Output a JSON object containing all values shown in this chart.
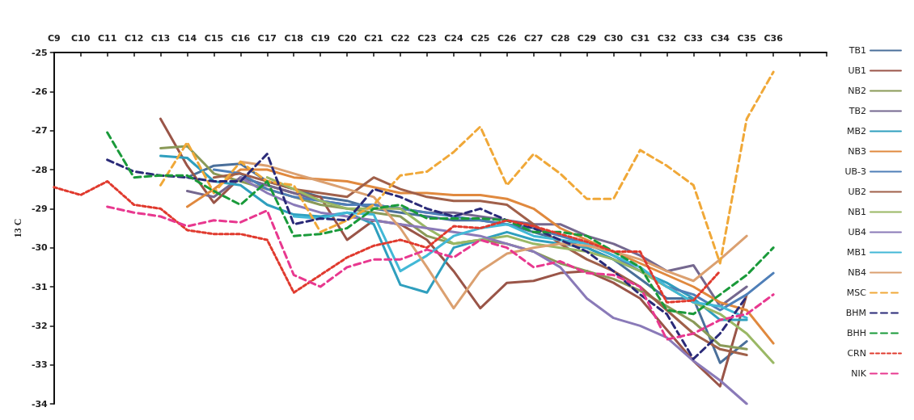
{
  "chart_data": {
    "type": "line",
    "ylabel": "13 C",
    "categories": [
      "C9",
      "C10",
      "C11",
      "C12",
      "C13",
      "C14",
      "C15",
      "C16",
      "C17",
      "C18",
      "C19",
      "C20",
      "C21",
      "C22",
      "C23",
      "C24",
      "C25",
      "C26",
      "C27",
      "C28",
      "C29",
      "C30",
      "C31",
      "C32",
      "C33",
      "C34",
      "C35",
      "C36",
      null,
      null
    ],
    "ylim": [
      -34,
      -25
    ],
    "yticks": [
      -34,
      -33,
      -32,
      -31,
      -30,
      -29,
      -28,
      -27,
      -26,
      -25
    ],
    "grid": false,
    "legend": "right",
    "marker": "none",
    "series": [
      {
        "name": "TB1",
        "color": "#4a6f9a",
        "line_style": "solid",
        "values": [
          null,
          null,
          null,
          null,
          null,
          -28.2,
          -27.9,
          -27.85,
          -28.3,
          -28.5,
          -28.7,
          -28.8,
          -29.0,
          -29.1,
          -29.2,
          -29.3,
          -29.3,
          -29.4,
          -29.6,
          -29.8,
          -30.0,
          -30.3,
          -30.8,
          -31.3,
          -31.3,
          -32.95,
          -32.4,
          null,
          null,
          null
        ]
      },
      {
        "name": "UB1",
        "color": "#9a5548",
        "line_style": "solid",
        "values": [
          null,
          null,
          null,
          null,
          -26.7,
          -27.9,
          -28.85,
          -28.2,
          -28.4,
          -28.6,
          -28.7,
          -29.8,
          -29.3,
          -29.4,
          -29.8,
          -30.6,
          -31.55,
          -30.9,
          -30.85,
          -30.65,
          -30.6,
          -30.9,
          -31.3,
          -32.1,
          -32.9,
          -33.55,
          -31.2,
          null,
          null,
          null
        ]
      },
      {
        "name": "NB2",
        "color": "#8a9a58",
        "line_style": "solid",
        "values": [
          null,
          null,
          null,
          null,
          -27.45,
          -27.4,
          -28.1,
          -28.3,
          -28.5,
          -28.7,
          -28.9,
          -29.0,
          -29.1,
          -29.2,
          -29.7,
          -29.9,
          -29.8,
          -29.9,
          -30.1,
          -30.4,
          -30.6,
          -30.8,
          -31.1,
          -31.5,
          -31.9,
          -32.5,
          -32.6,
          null,
          null,
          null
        ]
      },
      {
        "name": "TB2",
        "color": "#75688f",
        "line_style": "solid",
        "values": [
          null,
          null,
          null,
          null,
          null,
          -28.55,
          -28.7,
          -28.2,
          -28.4,
          -28.6,
          -28.8,
          -28.9,
          -28.9,
          -29.0,
          -29.1,
          -29.1,
          -29.2,
          -29.3,
          -29.4,
          -29.4,
          -29.7,
          -29.9,
          -30.2,
          -30.6,
          -30.45,
          -31.5,
          -31.0,
          null,
          null,
          null
        ]
      },
      {
        "name": "MB2",
        "color": "#2f9fbe",
        "line_style": "solid",
        "values": [
          null,
          null,
          null,
          null,
          -27.65,
          -27.7,
          -28.3,
          -28.4,
          -28.9,
          -29.15,
          -29.2,
          -29.1,
          -29.4,
          -30.95,
          -31.15,
          -30.0,
          -29.8,
          -29.6,
          -29.8,
          -29.9,
          -30.0,
          -30.3,
          -30.6,
          -30.9,
          -31.3,
          -31.85,
          -31.85,
          null,
          null,
          null
        ]
      },
      {
        "name": "NB3",
        "color": "#e0893e",
        "line_style": "solid",
        "values": [
          null,
          null,
          null,
          null,
          null,
          -28.95,
          -28.5,
          -28.0,
          -28.0,
          -28.2,
          -28.25,
          -28.3,
          -28.45,
          -28.6,
          -28.6,
          -28.65,
          -28.65,
          -28.75,
          -29.0,
          -29.5,
          -29.8,
          -30.1,
          -30.4,
          -30.7,
          -31.0,
          -31.4,
          -31.6,
          -32.45,
          null,
          null
        ]
      },
      {
        "name": "UB-3",
        "color": "#4f7fb8",
        "line_style": "solid",
        "values": [
          null,
          null,
          null,
          null,
          null,
          null,
          -28.0,
          -28.1,
          -28.5,
          -28.7,
          -28.8,
          -28.9,
          -28.9,
          -29.0,
          -29.1,
          -29.2,
          -29.3,
          -29.4,
          -29.5,
          -29.7,
          -29.9,
          -30.2,
          -30.6,
          -31.0,
          -31.2,
          -31.6,
          -31.2,
          -30.65,
          null,
          null
        ]
      },
      {
        "name": "UB2",
        "color": "#a0604a",
        "line_style": "solid",
        "values": [
          null,
          null,
          null,
          null,
          null,
          null,
          -28.2,
          -28.1,
          -28.3,
          -28.5,
          -28.6,
          -28.7,
          -28.2,
          -28.5,
          -28.7,
          -28.8,
          -28.8,
          -28.9,
          -29.4,
          -29.9,
          -30.3,
          -30.6,
          -31.0,
          -31.6,
          -32.2,
          -32.6,
          -32.75,
          null,
          null,
          null
        ]
      },
      {
        "name": "NB1",
        "color": "#9ab865",
        "line_style": "solid",
        "values": [
          null,
          null,
          null,
          null,
          null,
          null,
          null,
          null,
          -28.2,
          -28.5,
          -28.8,
          -29.0,
          -29.0,
          -29.0,
          -29.5,
          -29.9,
          -29.8,
          -29.7,
          -29.9,
          -30.0,
          -30.1,
          -30.3,
          -30.6,
          -31.0,
          -31.4,
          -31.7,
          -32.2,
          -32.95,
          null,
          null
        ]
      },
      {
        "name": "UB4",
        "color": "#8a7ab8",
        "line_style": "solid",
        "values": [
          null,
          null,
          null,
          null,
          null,
          null,
          null,
          -28.2,
          -28.6,
          -28.9,
          -29.1,
          -29.2,
          -29.3,
          -29.4,
          -29.5,
          -29.6,
          -29.7,
          -29.9,
          -30.1,
          -30.5,
          -31.3,
          -31.8,
          -32.0,
          -32.3,
          -32.9,
          -33.4,
          -34.0,
          null,
          null,
          null
        ]
      },
      {
        "name": "MB1",
        "color": "#42b8d6",
        "line_style": "solid",
        "values": [
          null,
          null,
          null,
          null,
          null,
          null,
          null,
          null,
          null,
          -29.2,
          -29.25,
          -29.1,
          -29.15,
          -30.6,
          -30.2,
          -29.7,
          -29.5,
          -29.4,
          -29.7,
          -29.8,
          -29.9,
          -30.2,
          -30.5,
          -31.0,
          -31.4,
          -31.5,
          -31.8,
          null,
          null,
          null
        ]
      },
      {
        "name": "NB4",
        "color": "#dba070",
        "line_style": "solid",
        "values": [
          null,
          null,
          null,
          null,
          null,
          null,
          null,
          -27.8,
          -27.9,
          -28.1,
          -28.3,
          -28.5,
          -28.7,
          -29.5,
          -30.5,
          -31.55,
          -30.6,
          -30.15,
          -30.0,
          -29.9,
          -29.95,
          -30.1,
          -30.3,
          -30.6,
          -30.85,
          -30.3,
          -29.7,
          null,
          null,
          null
        ]
      },
      {
        "name": "MSC",
        "color": "#f0a838",
        "line_style": "dashed",
        "values": [
          null,
          null,
          null,
          null,
          -28.4,
          -27.3,
          -28.6,
          -27.8,
          -28.3,
          -28.4,
          -29.6,
          -29.3,
          -28.9,
          -28.15,
          -28.05,
          -27.55,
          -26.9,
          -28.4,
          -27.6,
          -28.1,
          -28.75,
          -28.75,
          -27.5,
          -27.9,
          -28.4,
          -30.4,
          -26.7,
          -25.5,
          null,
          null
        ]
      },
      {
        "name": "BHM",
        "color": "#2a2a78",
        "line_style": "dashed",
        "values": [
          null,
          null,
          -27.75,
          -28.05,
          -28.15,
          -28.2,
          -28.3,
          -28.3,
          -27.6,
          -29.4,
          -29.25,
          -29.3,
          -28.5,
          -28.7,
          -29.0,
          -29.2,
          -29.0,
          -29.3,
          -29.5,
          -29.8,
          -30.1,
          -30.6,
          -31.2,
          -31.7,
          -32.85,
          -32.2,
          -31.25,
          null,
          null,
          null
        ]
      },
      {
        "name": "BHH",
        "color": "#1a9a3a",
        "line_style": "dashed",
        "values": [
          null,
          null,
          -27.05,
          -28.2,
          -28.15,
          -28.15,
          -28.55,
          -28.9,
          -28.3,
          -29.7,
          -29.65,
          -29.5,
          -29.0,
          -28.9,
          -29.25,
          -29.25,
          -29.25,
          -29.3,
          -29.6,
          -29.6,
          -29.7,
          -30.1,
          -30.5,
          -31.6,
          -31.7,
          -31.2,
          -30.7,
          -30.0,
          null,
          null
        ]
      },
      {
        "name": "CRN",
        "color": "#e03a2e",
        "line_style": "dotted",
        "values": [
          -28.45,
          -28.65,
          -28.3,
          -28.9,
          -29.0,
          -29.55,
          -29.65,
          -29.65,
          -29.8,
          -31.15,
          -30.7,
          -30.25,
          -29.95,
          -29.8,
          -30.0,
          -29.45,
          -29.5,
          -29.3,
          -29.45,
          -29.65,
          -29.85,
          -30.1,
          -30.1,
          -31.4,
          -31.35,
          -30.6,
          null,
          null,
          null,
          null
        ]
      },
      {
        "name": "NIK",
        "color": "#e8388f",
        "line_style": "dashed",
        "values": [
          null,
          null,
          -28.95,
          -29.1,
          -29.2,
          -29.45,
          -29.3,
          -29.35,
          -29.05,
          -30.7,
          -31.0,
          -30.5,
          -30.3,
          -30.3,
          -30.05,
          -30.25,
          -29.8,
          -30.0,
          -30.5,
          -30.35,
          -30.65,
          -30.7,
          -31.0,
          -32.35,
          -32.2,
          -31.85,
          -31.7,
          -31.2,
          null,
          null
        ]
      }
    ]
  }
}
